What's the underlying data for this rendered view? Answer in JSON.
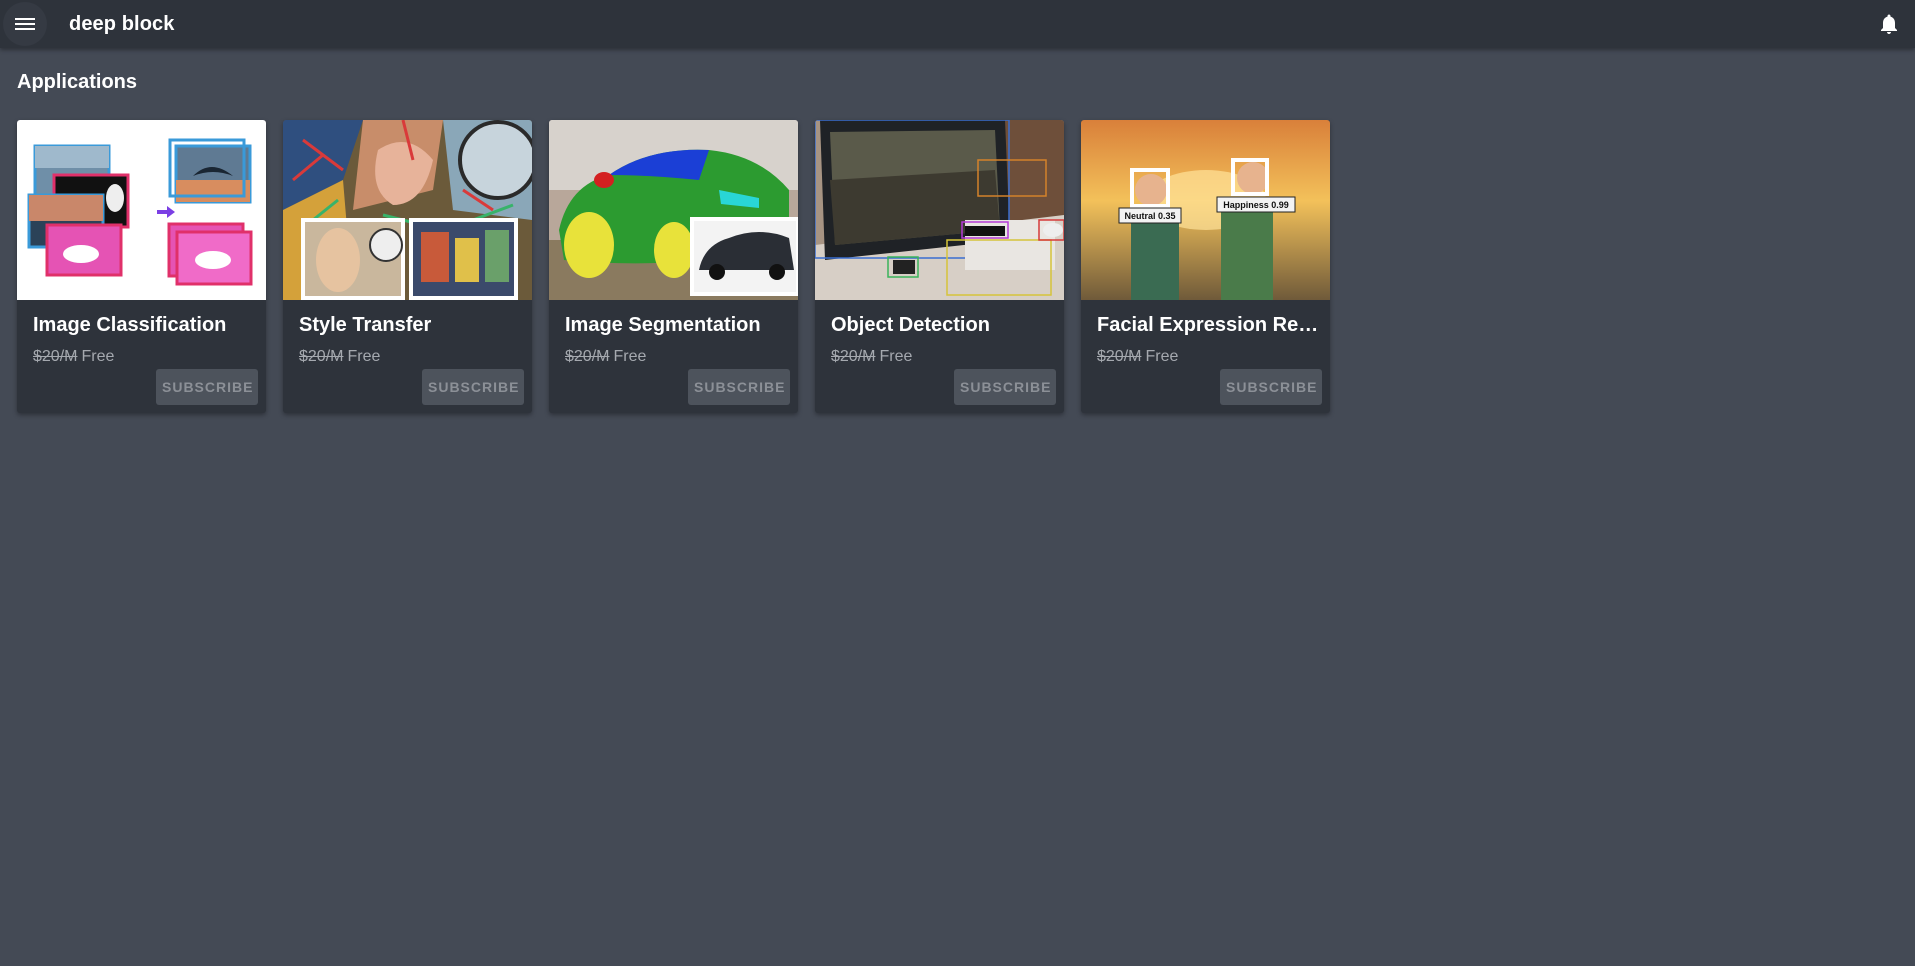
{
  "app": {
    "title": "deep block"
  },
  "header": {
    "menu_icon": "menu-icon",
    "notification_icon": "bell-icon"
  },
  "main": {
    "section_title": "Applications"
  },
  "cards": [
    {
      "title": "Image Classification",
      "old_price": "$20/M",
      "price": "Free",
      "button": "SUBSCRIBE"
    },
    {
      "title": "Style Transfer",
      "old_price": "$20/M",
      "price": "Free",
      "button": "SUBSCRIBE"
    },
    {
      "title": "Image Segmentation",
      "old_price": "$20/M",
      "price": "Free",
      "button": "SUBSCRIBE"
    },
    {
      "title": "Object Detection",
      "old_price": "$20/M",
      "price": "Free",
      "button": "SUBSCRIBE"
    },
    {
      "title": "Facial Expression Recognition",
      "old_price": "$20/M",
      "price": "Free",
      "button": "SUBSCRIBE",
      "labels": [
        "Neutral 0.35",
        "Happiness 0.99"
      ]
    }
  ],
  "colors": {
    "background": "#444a55",
    "appbar": "#2e333b",
    "card": "#2e333b",
    "button": "#4d535c"
  }
}
